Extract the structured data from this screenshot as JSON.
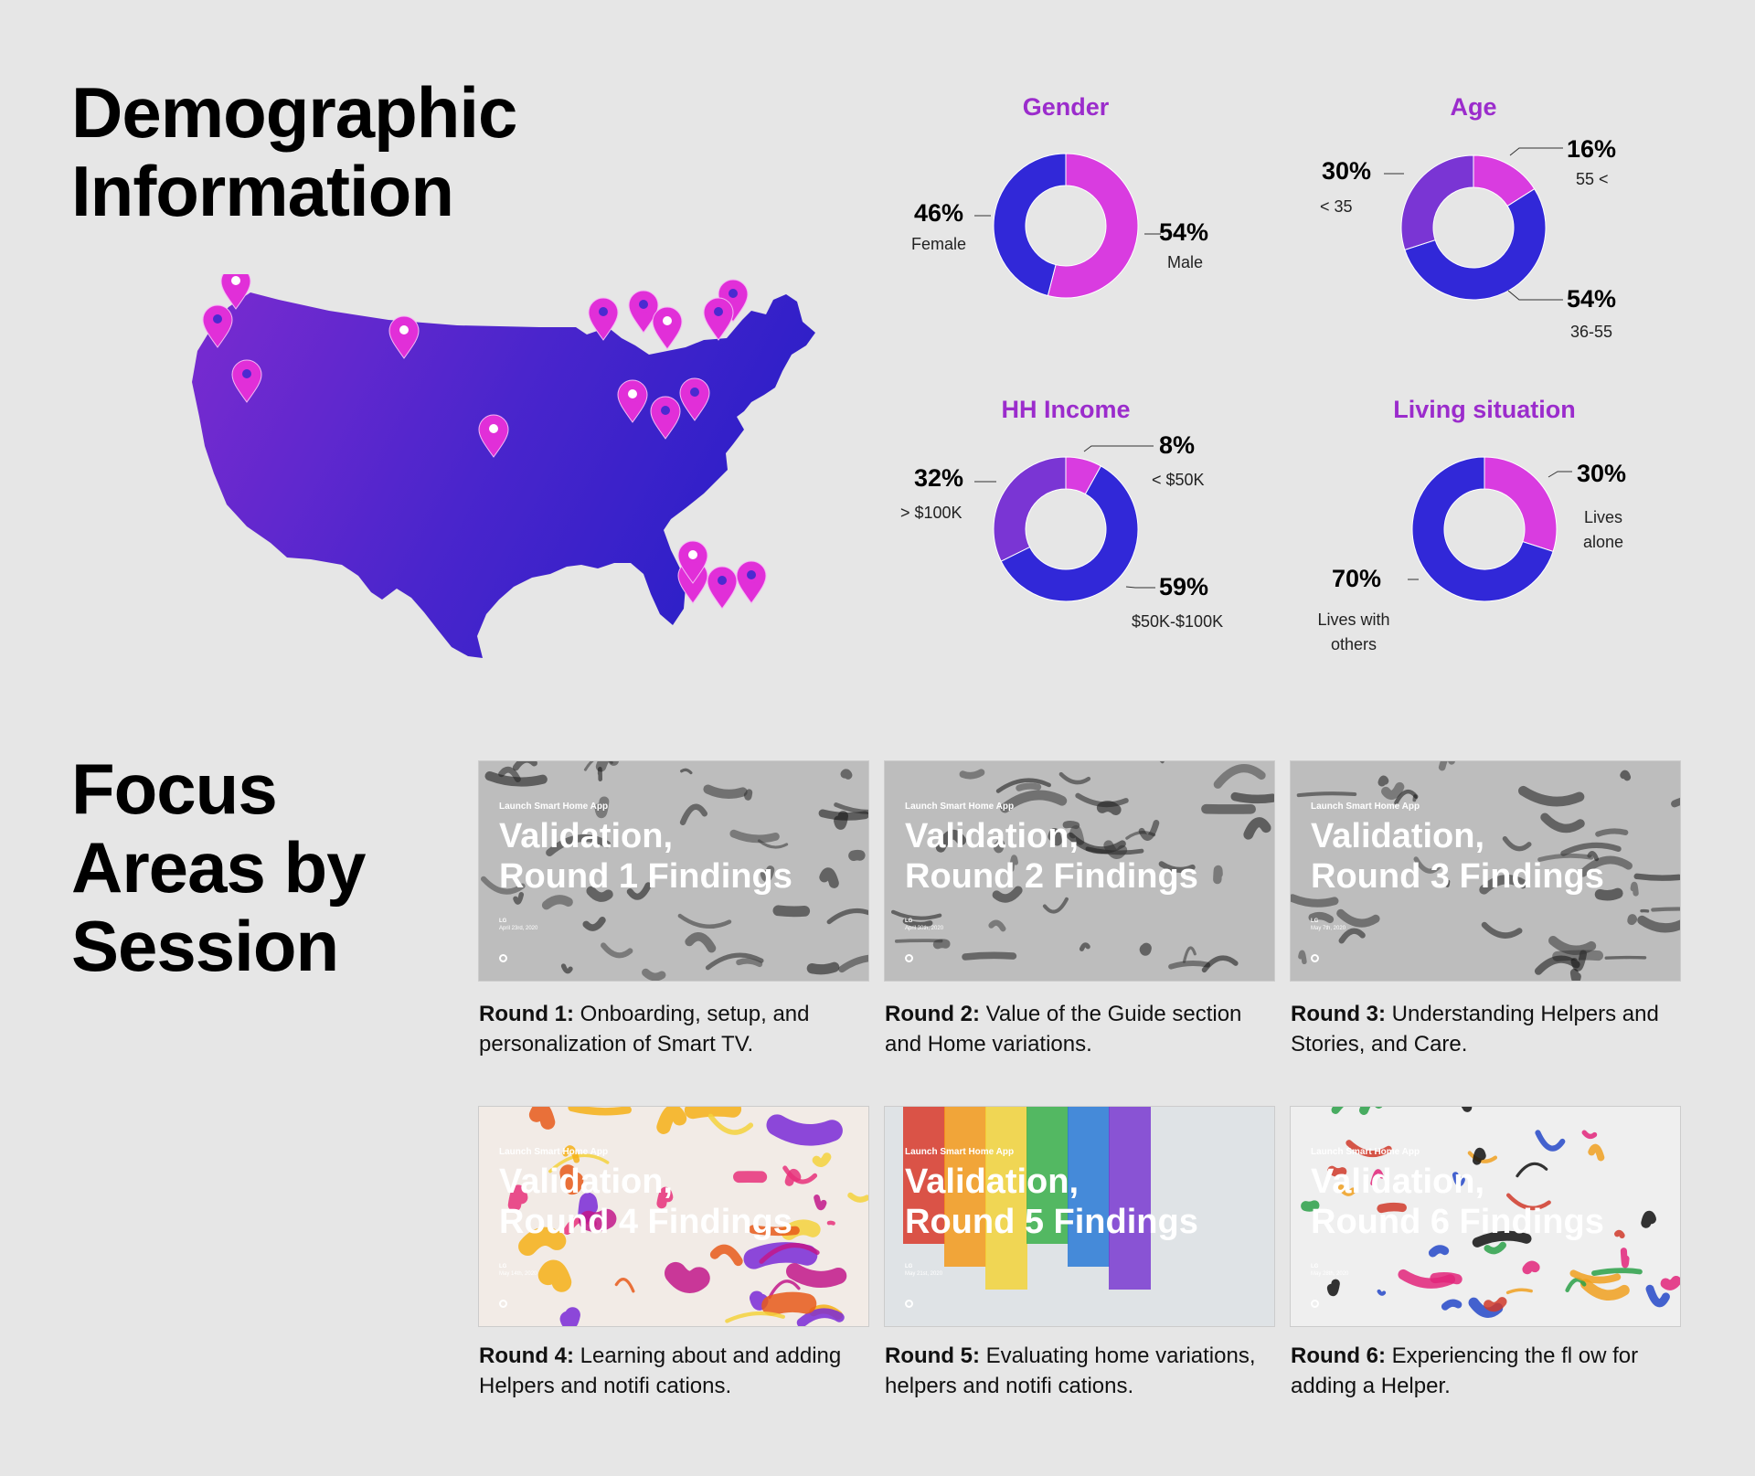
{
  "headings": {
    "demographic": "Demographic Information",
    "focus": "Focus Areas by Session"
  },
  "colors": {
    "magenta": "#d93ce0",
    "blue": "#3128d8",
    "purple": "#7a35d4",
    "title_purple": "#9b2ccc",
    "pin": "#e12fd8"
  },
  "map": {
    "icon": "usa-map-with-location-pins",
    "pin_count": 17
  },
  "chart_data": [
    {
      "type": "pie",
      "title": "Gender",
      "slices": [
        {
          "label": "Male",
          "value": 54,
          "display": "54%",
          "color": "#d93ce0"
        },
        {
          "label": "Female",
          "value": 46,
          "display": "46%",
          "color": "#3128d8"
        }
      ]
    },
    {
      "type": "pie",
      "title": "Age",
      "slices": [
        {
          "label": "55 <",
          "value": 16,
          "display": "16%",
          "color": "#d93ce0"
        },
        {
          "label": "36-55",
          "value": 54,
          "display": "54%",
          "color": "#3128d8"
        },
        {
          "label": "< 35",
          "value": 30,
          "display": "30%",
          "color": "#7a35d4"
        }
      ]
    },
    {
      "type": "pie",
      "title": "HH Income",
      "slices": [
        {
          "label": "< $50K",
          "value": 8,
          "display": "8%",
          "color": "#d93ce0"
        },
        {
          "label": "$50K-$100K",
          "value": 59,
          "display": "59%",
          "color": "#3128d8"
        },
        {
          "label": "> $100K",
          "value": 32,
          "display": "32%",
          "color": "#7a35d4"
        }
      ]
    },
    {
      "type": "pie",
      "title": "Living situation",
      "slices": [
        {
          "label": "Lives alone",
          "value": 30,
          "display": "30%",
          "color": "#d93ce0"
        },
        {
          "label": "Lives with others",
          "value": 70,
          "display": "70%",
          "color": "#3128d8"
        }
      ]
    }
  ],
  "sessions": [
    {
      "kicker": "Launch Smart Home App",
      "title": "Validation,\nRound 1 Findings",
      "brand": "LG",
      "date": "April 23rd, 2020",
      "cap_bold": "Round 1:",
      "cap_text": " Onboarding, setup, and personalization of Smart TV.",
      "palette": "mono"
    },
    {
      "kicker": "Launch Smart Home App",
      "title": "Validation,\nRound 2 Findings",
      "brand": "LG",
      "date": "April 30th, 2020",
      "cap_bold": "Round 2:",
      "cap_text": " Value of the Guide section and Home variations.",
      "palette": "mono"
    },
    {
      "kicker": "Launch Smart Home App",
      "title": "Validation,\nRound 3 Findings",
      "brand": "LG",
      "date": "May 7th, 2020",
      "cap_bold": "Round 3:",
      "cap_text": " Understanding Helpers and Stories, and Care.",
      "palette": "mono"
    },
    {
      "kicker": "Launch Smart Home App",
      "title": "Validation,\nRound 4 Findings",
      "brand": "LG",
      "date": "May 14th, 2020",
      "cap_bold": "Round 4:",
      "cap_text": " Learning about and adding Helpers and notifi cations.",
      "palette": "warm"
    },
    {
      "kicker": "Launch Smart Home App",
      "title": "Validation,\nRound 5 Findings",
      "brand": "LG",
      "date": "May 21st, 2020",
      "cap_bold": "Round 5:",
      "cap_text": " Evaluating home variations, helpers and notifi cations.",
      "palette": "rainbow"
    },
    {
      "kicker": "Launch Smart Home App",
      "title": "Validation,\nRound 6 Findings",
      "brand": "LG",
      "date": "May 28th, 2020",
      "cap_bold": "Round 6:",
      "cap_text": " Experiencing the fl ow for adding a Helper.",
      "palette": "confetti"
    }
  ]
}
